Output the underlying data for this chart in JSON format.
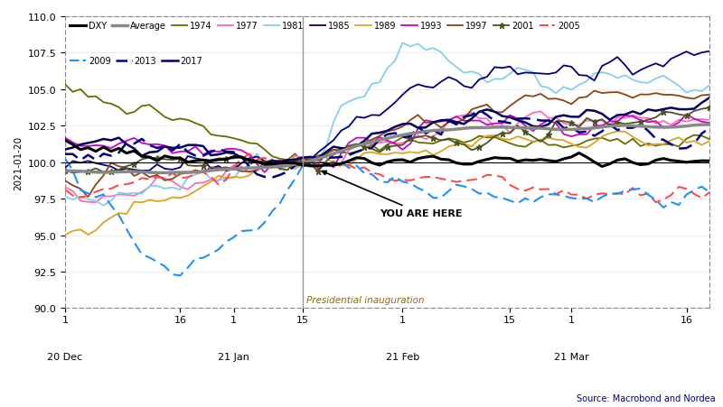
{
  "ylabel": "2021-01-20",
  "source": "Source: Macrobond and Nordea",
  "inauguration_label": "Presidential inauguration",
  "you_are_here": "YOU ARE HERE",
  "ylim": [
    90.0,
    110.0
  ],
  "yticks": [
    90.0,
    92.5,
    95.0,
    97.5,
    100.0,
    102.5,
    105.0,
    107.5,
    110.0
  ],
  "n_points": 85,
  "inauguration_idx": 31,
  "tick_positions": [
    0,
    15,
    22,
    31,
    44,
    58,
    66,
    81
  ],
  "tick_labels_top": [
    "1",
    "16",
    "1",
    "15",
    "1",
    "15",
    "1",
    "16"
  ],
  "tick_labels_bottom": [
    "20 Dec",
    "",
    "21 Jan",
    "",
    "21 Feb",
    "",
    "21 Mar",
    ""
  ],
  "series_cfg": {
    "DXY": {
      "color": "#000000",
      "lw": 2.2,
      "ls": "-",
      "marker": null,
      "ms": 0
    },
    "Average": {
      "color": "#888888",
      "lw": 2.5,
      "ls": "-",
      "marker": null,
      "ms": 0
    },
    "1974": {
      "color": "#6B6B00",
      "lw": 1.3,
      "ls": "-",
      "marker": null,
      "ms": 0
    },
    "1977": {
      "color": "#FF69B4",
      "lw": 1.3,
      "ls": "-",
      "marker": null,
      "ms": 0
    },
    "1981": {
      "color": "#87CEEB",
      "lw": 1.3,
      "ls": "-",
      "marker": null,
      "ms": 0
    },
    "1985": {
      "color": "#000080",
      "lw": 1.3,
      "ls": "-",
      "marker": null,
      "ms": 0
    },
    "1989": {
      "color": "#DAA520",
      "lw": 1.3,
      "ls": "-",
      "marker": null,
      "ms": 0
    },
    "1993": {
      "color": "#CC00CC",
      "lw": 1.3,
      "ls": "-",
      "marker": null,
      "ms": 0
    },
    "1997": {
      "color": "#8B4513",
      "lw": 1.3,
      "ls": "-",
      "marker": null,
      "ms": 0
    },
    "2001": {
      "color": "#4B5320",
      "lw": 1.3,
      "ls": "-",
      "marker": "*",
      "ms": 5
    },
    "2005": {
      "color": "#FF4444",
      "lw": 1.4,
      "ls": "--",
      "marker": null,
      "ms": 0
    },
    "2009": {
      "color": "#1E90FF",
      "lw": 1.5,
      "ls": "--",
      "marker": null,
      "ms": 0
    },
    "2013": {
      "color": "#000080",
      "lw": 1.8,
      "ls": "--",
      "marker": null,
      "ms": 0
    },
    "2017": {
      "color": "#000060",
      "lw": 1.8,
      "ls": "-",
      "marker": null,
      "ms": 0
    }
  },
  "legend_row1": [
    "DXY",
    "Average",
    "1974",
    "1977",
    "1981",
    "1985",
    "1989",
    "1993",
    "1997",
    "2001",
    "2005"
  ],
  "legend_row2": [
    "2009",
    "2013",
    "2017"
  ]
}
